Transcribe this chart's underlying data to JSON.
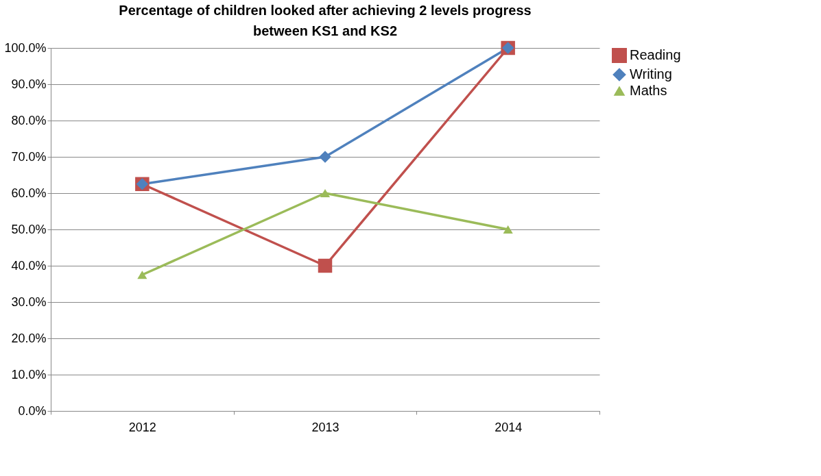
{
  "chart_data": {
    "type": "line",
    "title": "Percentage of children looked after achieving 2 levels progress between KS1 and KS2",
    "categories": [
      "2012",
      "2013",
      "2014"
    ],
    "series": [
      {
        "name": "Reading",
        "color": "#c0504d",
        "marker": "square",
        "values": [
          62.5,
          40,
          100
        ]
      },
      {
        "name": "Writing",
        "color": "#4f81bd",
        "marker": "diamond",
        "values": [
          62.5,
          70,
          100
        ]
      },
      {
        "name": "Maths",
        "color": "#9bbb59",
        "marker": "triangle",
        "values": [
          37.5,
          60,
          50
        ]
      }
    ],
    "ylim": [
      0,
      100
    ],
    "yticks": [
      {
        "value": 0,
        "label": "0.0%"
      },
      {
        "value": 10,
        "label": "10.0%"
      },
      {
        "value": 20,
        "label": "20.0%"
      },
      {
        "value": 30,
        "label": "30.0%"
      },
      {
        "value": 40,
        "label": "40.0%"
      },
      {
        "value": 50,
        "label": "50.0%"
      },
      {
        "value": 60,
        "label": "60.0%"
      },
      {
        "value": 70,
        "label": "70.0%"
      },
      {
        "value": 80,
        "label": "80.0%"
      },
      {
        "value": 90,
        "label": "90.0%"
      },
      {
        "value": 100,
        "label": "100.0%"
      }
    ],
    "grid": "y",
    "legend": "right",
    "line_style": "solid"
  }
}
